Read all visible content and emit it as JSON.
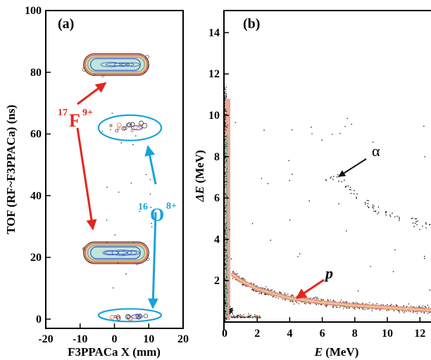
{
  "colors": {
    "f_annotation": "#e3261f",
    "o_annotation": "#17a3dc",
    "p_arrow": "#e3261f",
    "alpha_arrow": "#111111",
    "contour_outer": "#3a3a3a",
    "contour_mid": "#e96a4b",
    "contour_inner": "#3f52c8",
    "band_core": "#f39a8a"
  },
  "chart_data": [
    {
      "type": "heatmap",
      "panel_label": "(a)",
      "xlabel": "F3PPACa X (mm)",
      "ylabel": "TOF (RF~F3PPACa) (ns)",
      "xlim": [
        -20,
        20
      ],
      "ylim": [
        -3,
        100
      ],
      "xticks": [
        "-20",
        "-10",
        "0",
        "10",
        "20"
      ],
      "yticks": [
        "0",
        "20",
        "40",
        "60",
        "80",
        "100"
      ],
      "xtick_values": [
        -20,
        -10,
        0,
        10,
        20
      ],
      "ytick_values": [
        0,
        20,
        40,
        60,
        80,
        100
      ],
      "clusters": [
        {
          "species": "17F9+",
          "x_range": [
            -9,
            10
          ],
          "tof_center": 82.5,
          "tof_halfwidth": 3.5
        },
        {
          "species": "17F9+",
          "x_range": [
            -9,
            10
          ],
          "tof_center": 21.5,
          "tof_halfwidth": 3.5
        },
        {
          "species": "16O8+",
          "x_range": [
            -3,
            12
          ],
          "tof_center": 62,
          "tof_halfwidth": 2.5
        },
        {
          "species": "16O8+",
          "x_range": [
            -3,
            12
          ],
          "tof_center": 0.8,
          "tof_halfwidth": 1.2
        }
      ],
      "annotations": {
        "f_mass": "17",
        "f_symbol": "F",
        "f_charge": "9+",
        "o_mass": "16",
        "o_symbol": "O",
        "o_charge": "8+"
      }
    },
    {
      "type": "scatter",
      "panel_label": "(b)",
      "xlabel_symbol": "E",
      "xlabel_unit": " (MeV)",
      "ylabel_symbol": "ΔE",
      "ylabel_unit": " (MeV)",
      "xlim": [
        0,
        13
      ],
      "ylim": [
        0,
        15
      ],
      "xticks": [
        "0",
        "2",
        "4",
        "6",
        "8",
        "10",
        "12"
      ],
      "yticks": [
        "2",
        "4",
        "6",
        "8",
        "10",
        "12",
        "14"
      ],
      "xtick_values": [
        0,
        2,
        4,
        6,
        8,
        10,
        12
      ],
      "ytick_values": [
        2,
        4,
        6,
        8,
        10,
        12,
        14
      ],
      "loci": [
        {
          "label": "p",
          "points": [
            [
              0.5,
              2.3
            ],
            [
              1,
              2.0
            ],
            [
              2,
              1.6
            ],
            [
              4,
              1.15
            ],
            [
              6,
              0.95
            ],
            [
              8,
              0.8
            ],
            [
              10,
              0.7
            ],
            [
              12,
              0.6
            ],
            [
              13,
              0.55
            ]
          ]
        },
        {
          "label": "α",
          "points": [
            [
              7,
              7.0
            ],
            [
              8,
              6.2
            ],
            [
              9,
              5.6
            ],
            [
              10,
              5.2
            ],
            [
              12,
              4.8
            ],
            [
              13,
              4.6
            ]
          ]
        }
      ],
      "annotations": {
        "p_label": "p",
        "alpha_label": "α"
      }
    }
  ]
}
